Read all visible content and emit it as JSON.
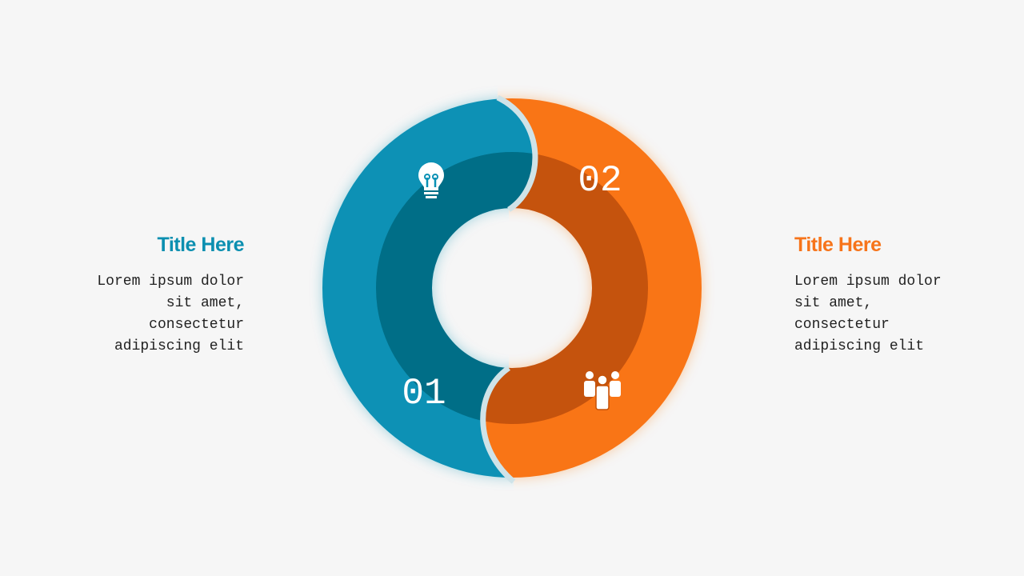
{
  "items": [
    {
      "number": "01",
      "title": "Title Here",
      "text": "Lorem ipsum dolor sit amet, consectetur adipiscing elit"
    },
    {
      "number": "02",
      "title": "Title Here",
      "text": "Lorem ipsum dolor sit amet, consectetur adipiscing elit"
    }
  ]
}
